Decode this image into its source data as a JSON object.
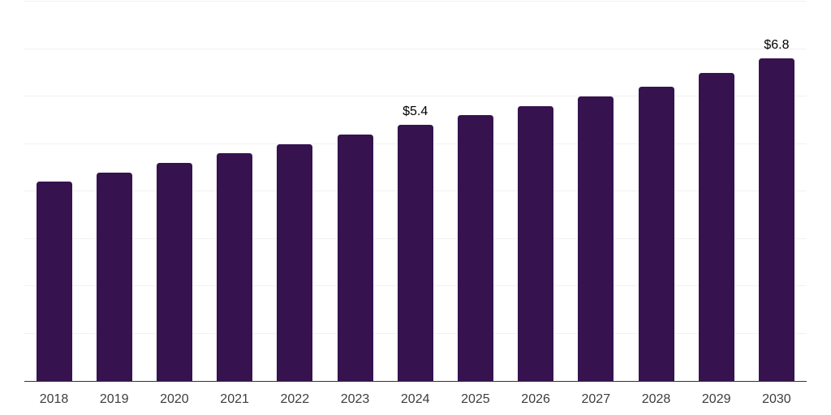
{
  "colors": {
    "background": "#FFFFFF",
    "bar": "#36124E",
    "gridline": "#F1F1F1",
    "axis_line": "#333333",
    "tick_label": "#3D3D3D",
    "value_label": "#000000"
  },
  "chart_data": {
    "type": "bar",
    "title": "",
    "xlabel": "",
    "ylabel": "",
    "categories": [
      "2018",
      "2019",
      "2020",
      "2021",
      "2022",
      "2023",
      "2024",
      "2025",
      "2026",
      "2027",
      "2028",
      "2029",
      "2030"
    ],
    "values": [
      4.2,
      4.4,
      4.6,
      4.8,
      5.0,
      5.2,
      5.4,
      5.6,
      5.8,
      6.0,
      6.2,
      6.5,
      6.8
    ],
    "value_labels": [
      "",
      "",
      "",
      "",
      "",
      "",
      "$5.4",
      "",
      "",
      "",
      "",
      "",
      "$6.8"
    ],
    "ylim": [
      0,
      8
    ],
    "grid": true,
    "gridline_interval": 1,
    "legend": "none",
    "y_axis_tick_labels": "none"
  }
}
